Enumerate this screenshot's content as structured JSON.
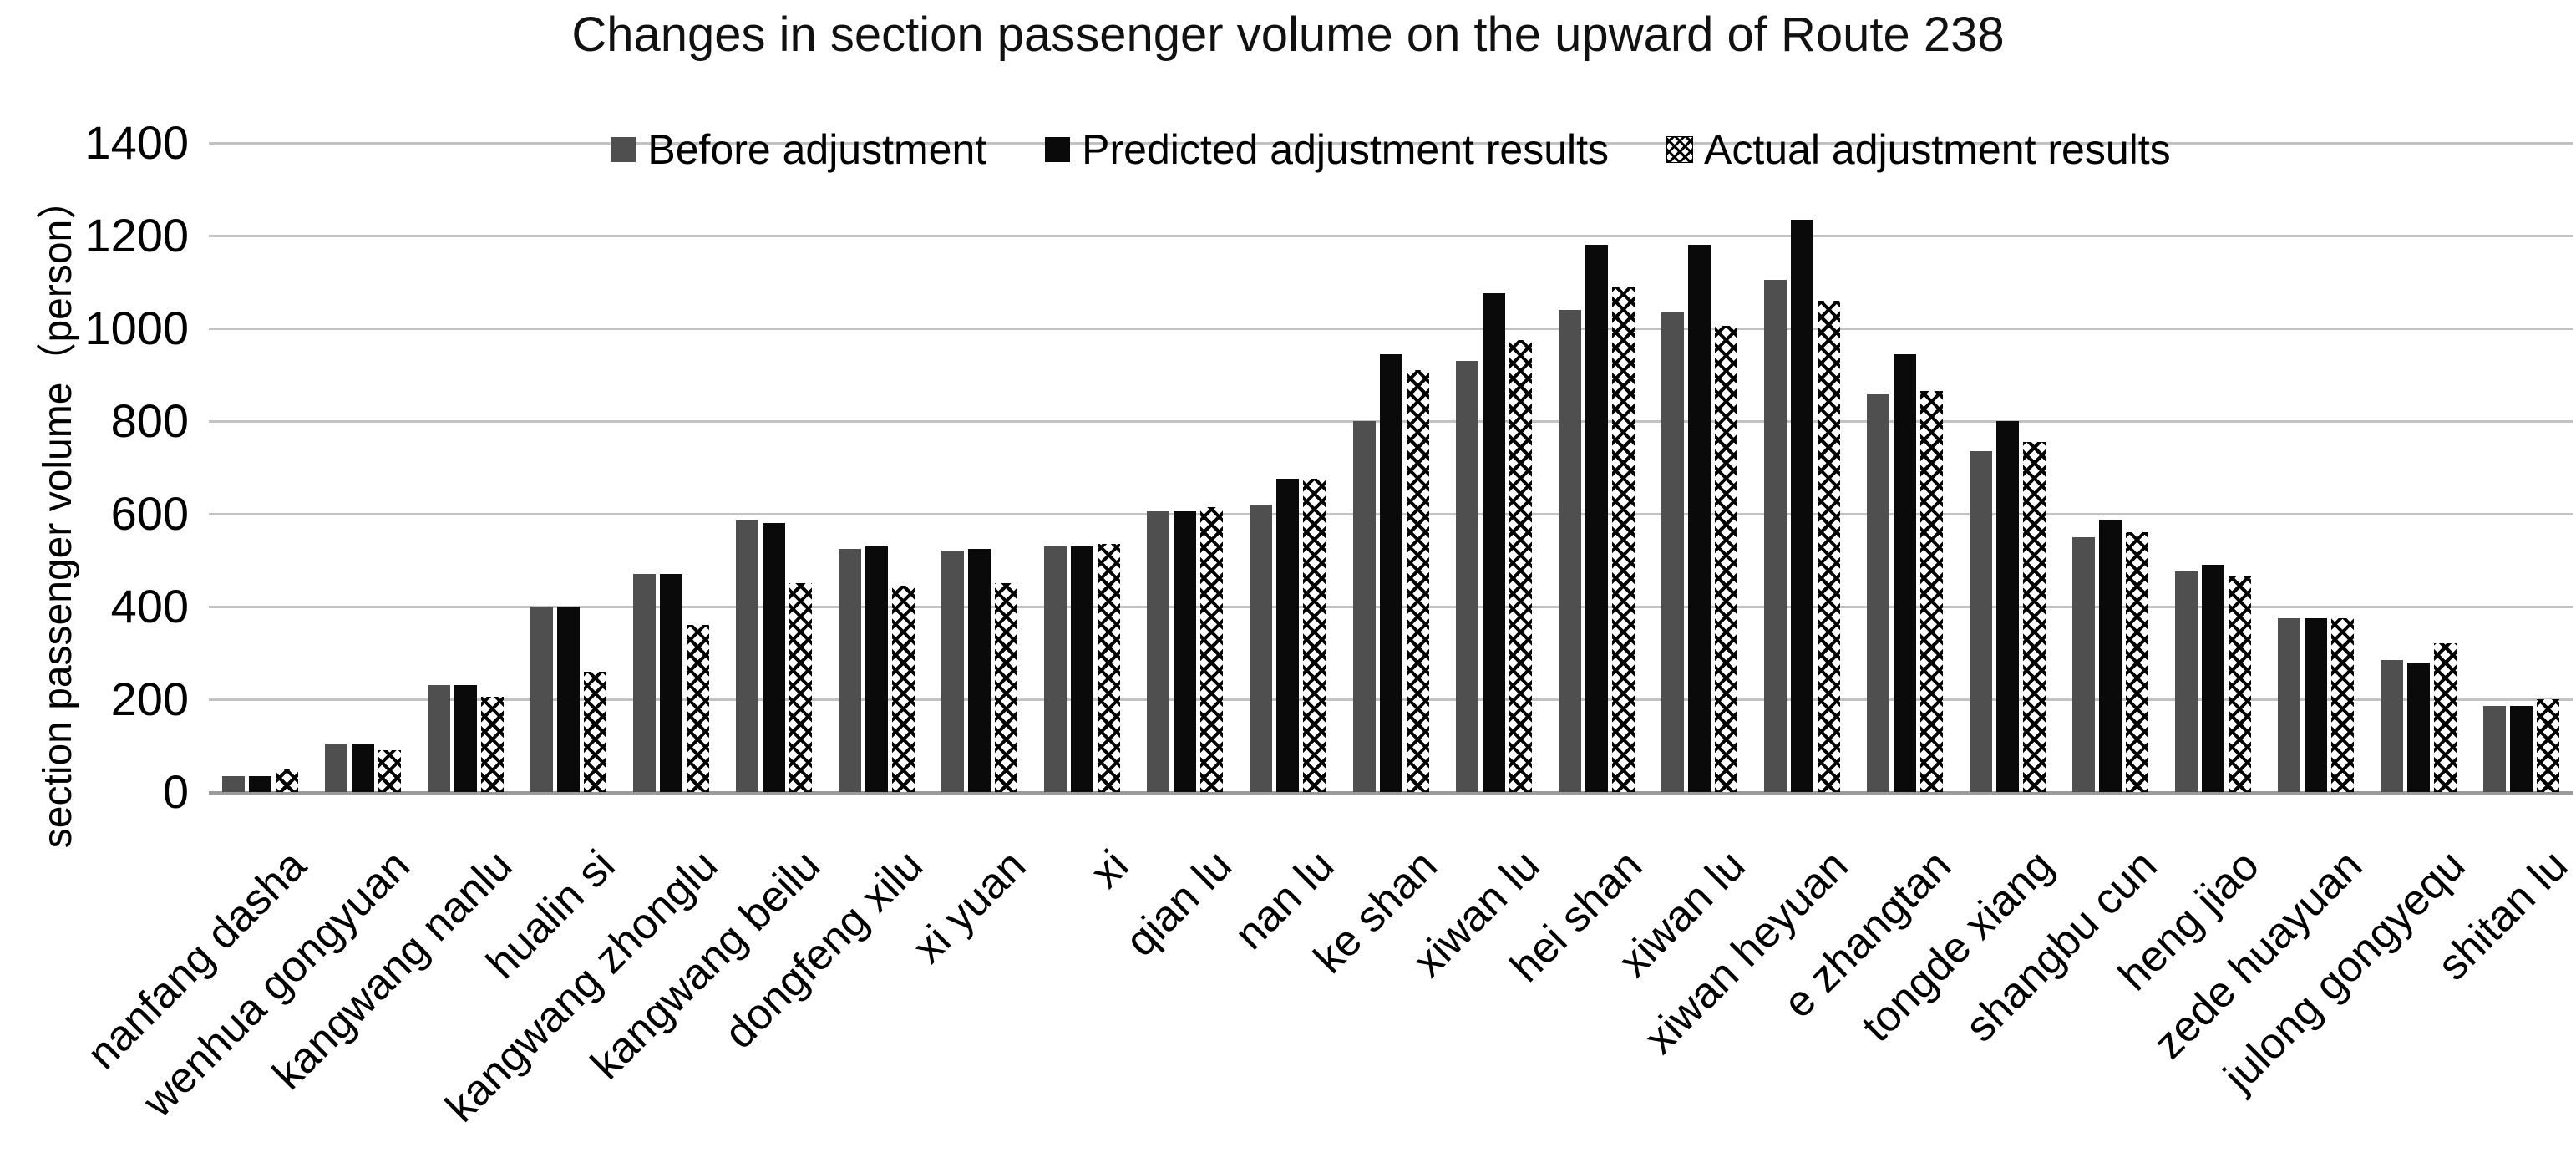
{
  "chart_data": {
    "type": "bar",
    "title": "Changes in section passenger volume on the upward of Route 238",
    "xlabel": "",
    "ylabel": "section passenger volume（person）",
    "ylim": [
      0,
      1400
    ],
    "yticks": [
      0,
      200,
      400,
      600,
      800,
      1000,
      1200,
      1400
    ],
    "grid": "horizontal",
    "legend_position": "top-center",
    "categories": [
      "nanfang dasha",
      "wenhua gongyuan",
      "kangwang nanlu",
      "hualin si",
      "kangwang zhonglu",
      "kangwang beilu",
      "dongfeng xilu",
      "xi yuan",
      "xi",
      "qian lu",
      "nan lu",
      "ke shan",
      "xiwan lu",
      "hei shan",
      "xiwan lu",
      "xiwan heyuan",
      "e zhangtan",
      "tongde xiang",
      "shangbu cun",
      "heng jiao",
      "zede huayuan",
      "julong gongyequ",
      "shitan lu"
    ],
    "series": [
      {
        "name": "Before adjustment",
        "style": "solid-gray",
        "color": "#4f4f4f",
        "values": [
          35,
          105,
          230,
          400,
          470,
          585,
          525,
          520,
          530,
          605,
          620,
          800,
          930,
          1040,
          1035,
          1105,
          860,
          735,
          550,
          475,
          375,
          285,
          185
        ]
      },
      {
        "name": "Predicted adjustment results",
        "style": "solid-black",
        "color": "#0a0a0a",
        "values": [
          35,
          105,
          230,
          400,
          470,
          580,
          530,
          525,
          530,
          605,
          675,
          945,
          1075,
          1180,
          1180,
          1235,
          945,
          800,
          585,
          490,
          375,
          280,
          185
        ]
      },
      {
        "name": "Actual adjustment results",
        "style": "checker-pattern",
        "color": "#000000",
        "values": [
          50,
          90,
          205,
          260,
          360,
          450,
          445,
          450,
          535,
          615,
          675,
          910,
          975,
          1090,
          1005,
          1060,
          865,
          755,
          560,
          465,
          375,
          320,
          200
        ]
      }
    ],
    "colors": {
      "gridline": "#c2c2c2",
      "axis": "#9b9b9b",
      "text": "#000000"
    }
  }
}
